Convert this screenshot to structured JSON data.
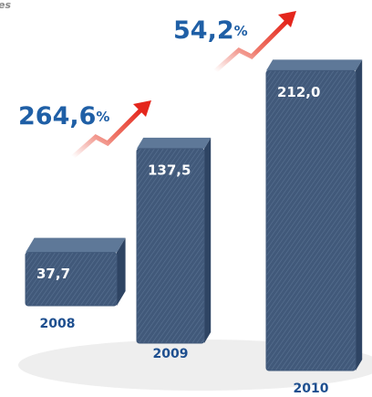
{
  "chart_data": {
    "type": "bar",
    "title": "es",
    "categories": [
      "2008",
      "2009",
      "2010"
    ],
    "values": [
      37.7,
      137.5,
      212.0
    ],
    "value_labels": [
      "37,7",
      "137,5",
      "212,0"
    ],
    "color": "#41597a",
    "annotations": [
      {
        "text": "264,6",
        "unit": "%"
      },
      {
        "text": "54,2",
        "unit": "%"
      }
    ]
  }
}
